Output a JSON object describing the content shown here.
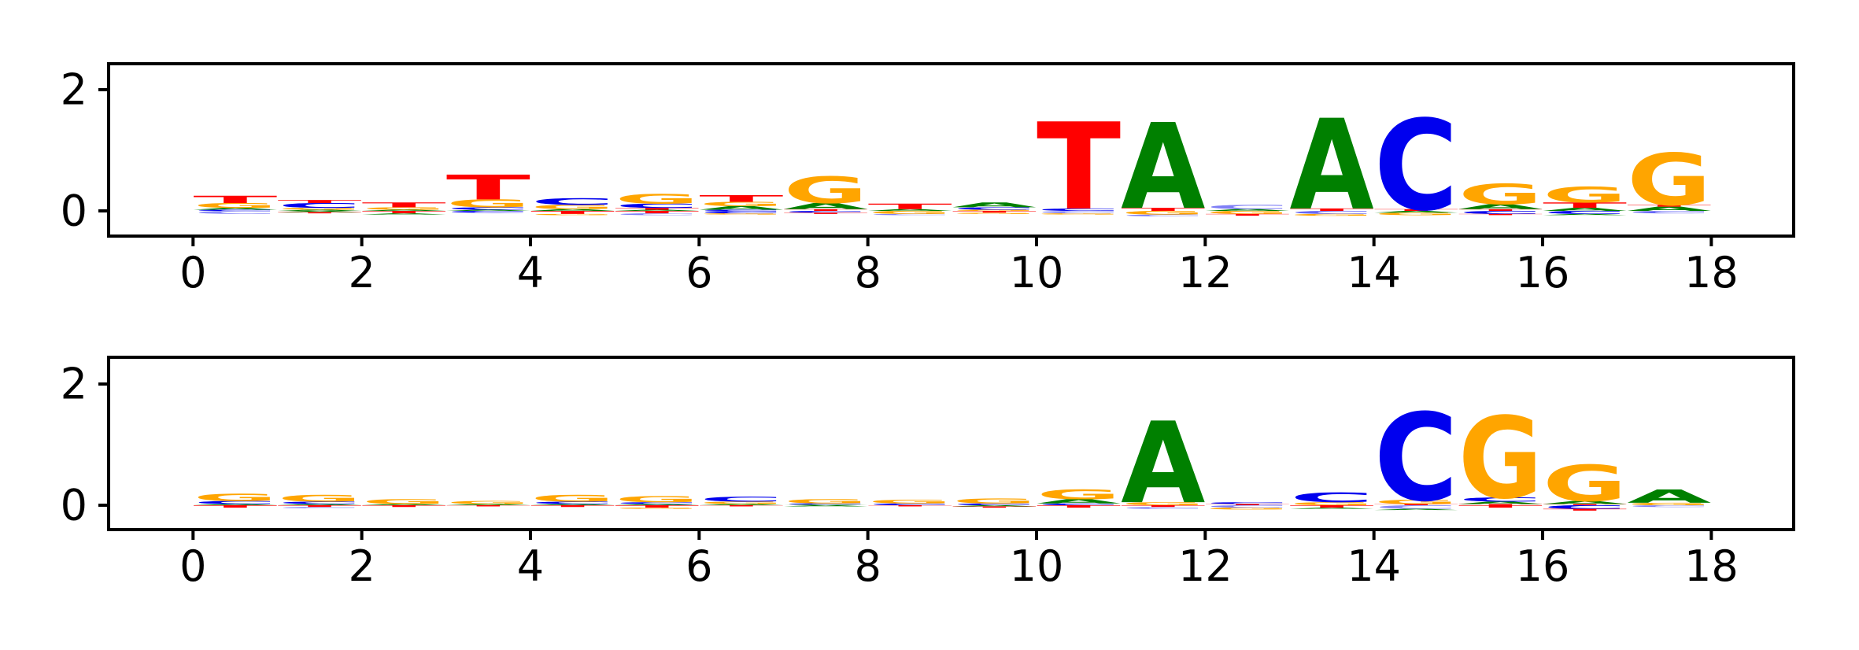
{
  "figure": {
    "background": "#ffffff"
  },
  "colors": {
    "A": "#008000",
    "C": "#0000ee",
    "G": "#ffa500",
    "T": "#ff0000"
  },
  "chart_data": [
    {
      "type": "bar",
      "subtype": "sequence-logo",
      "title": "",
      "xlabel": "",
      "ylabel": "",
      "legend": "none",
      "grid": false,
      "xticks": [
        "0",
        "2",
        "4",
        "6",
        "8",
        "10",
        "12",
        "14",
        "16",
        "18"
      ],
      "xtick_values": [
        0,
        2,
        4,
        6,
        8,
        10,
        12,
        14,
        16,
        18
      ],
      "yticks": [
        "0",
        "2"
      ],
      "ytick_values": [
        0,
        2
      ],
      "xlim": [
        -1,
        19
      ],
      "ylim": [
        -0.42,
        2.43
      ],
      "columns": [
        {
          "pos": 0,
          "letters": [
            {
              "base": "C",
              "value": 0.02
            },
            {
              "base": "A",
              "value": 0.03
            },
            {
              "base": "G",
              "value": 0.08
            },
            {
              "base": "T",
              "value": 0.12
            },
            {
              "base": "C",
              "value": -0.05,
              "alpha": 0.45
            }
          ]
        },
        {
          "pos": 1,
          "letters": [
            {
              "base": "A",
              "value": 0.02
            },
            {
              "base": "G",
              "value": 0.03
            },
            {
              "base": "C",
              "value": 0.08
            },
            {
              "base": "T",
              "value": 0.05
            },
            {
              "base": "A",
              "value": -0.02
            },
            {
              "base": "T",
              "value": -0.02
            }
          ]
        },
        {
          "pos": 2,
          "letters": [
            {
              "base": "A",
              "value": 0.02
            },
            {
              "base": "G",
              "value": 0.04
            },
            {
              "base": "T",
              "value": 0.08
            },
            {
              "base": "T",
              "value": -0.04
            },
            {
              "base": "A",
              "value": -0.02
            }
          ]
        },
        {
          "pos": 3,
          "letters": [
            {
              "base": "A",
              "value": 0.02
            },
            {
              "base": "C",
              "value": 0.04
            },
            {
              "base": "G",
              "value": 0.13
            },
            {
              "base": "T",
              "value": 0.41
            },
            {
              "base": "C",
              "value": -0.03
            }
          ]
        },
        {
          "pos": 4,
          "letters": [
            {
              "base": "A",
              "value": 0.03
            },
            {
              "base": "G",
              "value": 0.07
            },
            {
              "base": "C",
              "value": 0.11
            },
            {
              "base": "T",
              "value": -0.05
            },
            {
              "base": "G",
              "value": -0.02
            }
          ]
        },
        {
          "pos": 5,
          "letters": [
            {
              "base": "A",
              "value": 0.02
            },
            {
              "base": "T",
              "value": 0.03
            },
            {
              "base": "C",
              "value": 0.07
            },
            {
              "base": "G",
              "value": 0.16
            },
            {
              "base": "T",
              "value": -0.04
            },
            {
              "base": "C",
              "value": -0.03,
              "alpha": 0.5
            }
          ]
        },
        {
          "pos": 6,
          "letters": [
            {
              "base": "C",
              "value": 0.02
            },
            {
              "base": "A",
              "value": 0.06
            },
            {
              "base": "G",
              "value": 0.07
            },
            {
              "base": "T",
              "value": 0.11
            },
            {
              "base": "C",
              "value": -0.04
            },
            {
              "base": "G",
              "value": -0.02
            }
          ]
        },
        {
          "pos": 7,
          "letters": [
            {
              "base": "T",
              "value": 0.03
            },
            {
              "base": "A",
              "value": 0.1
            },
            {
              "base": "G",
              "value": 0.44
            },
            {
              "base": "C",
              "value": -0.03
            },
            {
              "base": "T",
              "value": -0.02
            }
          ]
        },
        {
          "pos": 8,
          "letters": [
            {
              "base": "A",
              "value": 0.03
            },
            {
              "base": "T",
              "value": 0.09
            },
            {
              "base": "G",
              "value": -0.05
            },
            {
              "base": "C",
              "value": -0.02,
              "alpha": 0.5
            }
          ]
        },
        {
          "pos": 9,
          "letters": [
            {
              "base": "G",
              "value": 0.02
            },
            {
              "base": "C",
              "value": 0.04
            },
            {
              "base": "A",
              "value": 0.08
            },
            {
              "base": "T",
              "value": -0.03
            },
            {
              "base": "G",
              "value": -0.02
            }
          ]
        },
        {
          "pos": 10,
          "letters": [
            {
              "base": "C",
              "value": 0.04
            },
            {
              "base": "T",
              "value": 1.44
            },
            {
              "base": "C",
              "value": -0.04,
              "alpha": 0.45
            },
            {
              "base": "G",
              "value": -0.02
            }
          ]
        },
        {
          "pos": 11,
          "letters": [
            {
              "base": "T",
              "value": 0.05
            },
            {
              "base": "A",
              "value": 1.42
            },
            {
              "base": "G",
              "value": -0.06
            },
            {
              "base": "C",
              "value": -0.03,
              "alpha": 0.5
            }
          ]
        },
        {
          "pos": 12,
          "letters": [
            {
              "base": "A",
              "value": 0.03
            },
            {
              "base": "C",
              "value": 0.07,
              "alpha": 0.5
            },
            {
              "base": "G",
              "value": -0.05
            },
            {
              "base": "T",
              "value": -0.03
            }
          ]
        },
        {
          "pos": 13,
          "letters": [
            {
              "base": "T",
              "value": 0.04
            },
            {
              "base": "A",
              "value": 1.5
            },
            {
              "base": "C",
              "value": -0.05,
              "alpha": 0.6
            },
            {
              "base": "G",
              "value": -0.03
            }
          ]
        },
        {
          "pos": 14,
          "letters": [
            {
              "base": "T",
              "value": 0.03
            },
            {
              "base": "C",
              "value": 1.5
            },
            {
              "base": "A",
              "value": -0.03
            },
            {
              "base": "G",
              "value": -0.04
            }
          ]
        },
        {
          "pos": 15,
          "letters": [
            {
              "base": "T",
              "value": 0.03
            },
            {
              "base": "A",
              "value": 0.08
            },
            {
              "base": "G",
              "value": 0.34
            },
            {
              "base": "C",
              "value": -0.05
            },
            {
              "base": "T",
              "value": -0.02
            }
          ]
        },
        {
          "pos": 16,
          "letters": [
            {
              "base": "A",
              "value": 0.05
            },
            {
              "base": "T",
              "value": 0.09
            },
            {
              "base": "G",
              "value": 0.26
            },
            {
              "base": "C",
              "value": -0.05
            },
            {
              "base": "A",
              "value": -0.02
            }
          ]
        },
        {
          "pos": 17,
          "letters": [
            {
              "base": "A",
              "value": 0.07
            },
            {
              "base": "T",
              "value": 0.03
            },
            {
              "base": "G",
              "value": 0.86
            },
            {
              "base": "C",
              "value": -0.04,
              "alpha": 0.6
            }
          ]
        }
      ]
    },
    {
      "type": "bar",
      "subtype": "sequence-logo",
      "title": "",
      "xlabel": "",
      "ylabel": "",
      "legend": "none",
      "grid": false,
      "xticks": [
        "0",
        "2",
        "4",
        "6",
        "8",
        "10",
        "12",
        "14",
        "16",
        "18"
      ],
      "xtick_values": [
        0,
        2,
        4,
        6,
        8,
        10,
        12,
        14,
        16,
        18
      ],
      "yticks": [
        "0",
        "2"
      ],
      "ytick_values": [
        0,
        2
      ],
      "xlim": [
        -1,
        19
      ],
      "ylim": [
        -0.42,
        2.43
      ],
      "columns": [
        {
          "pos": 0,
          "letters": [
            {
              "base": "A",
              "value": 0.02
            },
            {
              "base": "C",
              "value": 0.05
            },
            {
              "base": "G",
              "value": 0.12
            },
            {
              "base": "T",
              "value": -0.04
            }
          ]
        },
        {
          "pos": 1,
          "letters": [
            {
              "base": "A",
              "value": 0.02
            },
            {
              "base": "C",
              "value": 0.04
            },
            {
              "base": "G",
              "value": 0.11
            },
            {
              "base": "T",
              "value": -0.03
            },
            {
              "base": "C",
              "value": -0.02,
              "alpha": 0.5
            }
          ]
        },
        {
          "pos": 2,
          "letters": [
            {
              "base": "A",
              "value": 0.02
            },
            {
              "base": "G",
              "value": 0.08
            },
            {
              "base": "T",
              "value": -0.03
            }
          ]
        },
        {
          "pos": 3,
          "letters": [
            {
              "base": "A",
              "value": 0.02
            },
            {
              "base": "G",
              "value": 0.05
            },
            {
              "base": "T",
              "value": -0.02
            }
          ]
        },
        {
          "pos": 4,
          "letters": [
            {
              "base": "A",
              "value": 0.02
            },
            {
              "base": "C",
              "value": 0.04
            },
            {
              "base": "G",
              "value": 0.11
            },
            {
              "base": "T",
              "value": -0.03
            }
          ]
        },
        {
          "pos": 5,
          "letters": [
            {
              "base": "A",
              "value": 0.02
            },
            {
              "base": "C",
              "value": 0.03
            },
            {
              "base": "G",
              "value": 0.1
            },
            {
              "base": "T",
              "value": -0.04
            },
            {
              "base": "G",
              "value": -0.02
            }
          ]
        },
        {
          "pos": 6,
          "letters": [
            {
              "base": "A",
              "value": 0.02
            },
            {
              "base": "G",
              "value": 0.04
            },
            {
              "base": "C",
              "value": 0.08
            },
            {
              "base": "T",
              "value": -0.02
            }
          ]
        },
        {
          "pos": 7,
          "letters": [
            {
              "base": "A",
              "value": 0.01
            },
            {
              "base": "C",
              "value": 0.02
            },
            {
              "base": "G",
              "value": 0.07
            },
            {
              "base": "A",
              "value": -0.02
            }
          ]
        },
        {
          "pos": 8,
          "letters": [
            {
              "base": "C",
              "value": 0.03
            },
            {
              "base": "G",
              "value": 0.06
            },
            {
              "base": "T",
              "value": -0.02
            }
          ]
        },
        {
          "pos": 9,
          "letters": [
            {
              "base": "C",
              "value": 0.03
            },
            {
              "base": "G",
              "value": 0.08
            },
            {
              "base": "A",
              "value": -0.02
            },
            {
              "base": "T",
              "value": -0.02
            }
          ]
        },
        {
          "pos": 10,
          "letters": [
            {
              "base": "C",
              "value": 0.03
            },
            {
              "base": "A",
              "value": 0.07
            },
            {
              "base": "G",
              "value": 0.16
            },
            {
              "base": "T",
              "value": -0.04
            }
          ]
        },
        {
          "pos": 11,
          "letters": [
            {
              "base": "G",
              "value": 0.05
            },
            {
              "base": "A",
              "value": 1.35
            },
            {
              "base": "T",
              "value": -0.03
            },
            {
              "base": "C",
              "value": -0.03,
              "alpha": 0.5
            }
          ]
        },
        {
          "pos": 12,
          "letters": [
            {
              "base": "T",
              "value": 0.02
            },
            {
              "base": "C",
              "value": 0.03
            },
            {
              "base": "C",
              "value": -0.04,
              "alpha": 0.5
            },
            {
              "base": "G",
              "value": -0.03
            }
          ]
        },
        {
          "pos": 13,
          "letters": [
            {
              "base": "G",
              "value": 0.05
            },
            {
              "base": "C",
              "value": 0.16
            },
            {
              "base": "T",
              "value": -0.04
            },
            {
              "base": "A",
              "value": -0.02
            }
          ]
        },
        {
          "pos": 14,
          "letters": [
            {
              "base": "T",
              "value": 0.02
            },
            {
              "base": "G",
              "value": 0.07
            },
            {
              "base": "C",
              "value": 1.45
            },
            {
              "base": "C",
              "value": -0.06,
              "alpha": 0.45
            },
            {
              "base": "A",
              "value": -0.02
            }
          ]
        },
        {
          "pos": 15,
          "letters": [
            {
              "base": "T",
              "value": 0.02
            },
            {
              "base": "A",
              "value": 0.04
            },
            {
              "base": "C",
              "value": 0.07
            },
            {
              "base": "G",
              "value": 1.35
            },
            {
              "base": "T",
              "value": -0.04
            }
          ]
        },
        {
          "pos": 16,
          "letters": [
            {
              "base": "T",
              "value": 0.02
            },
            {
              "base": "A",
              "value": 0.05
            },
            {
              "base": "G",
              "value": 0.6
            },
            {
              "base": "C",
              "value": -0.06
            },
            {
              "base": "T",
              "value": -0.03
            }
          ]
        },
        {
          "pos": 17,
          "letters": [
            {
              "base": "G",
              "value": 0.04
            },
            {
              "base": "A",
              "value": 0.22
            },
            {
              "base": "C",
              "value": -0.03,
              "alpha": 0.5
            }
          ]
        }
      ]
    }
  ]
}
